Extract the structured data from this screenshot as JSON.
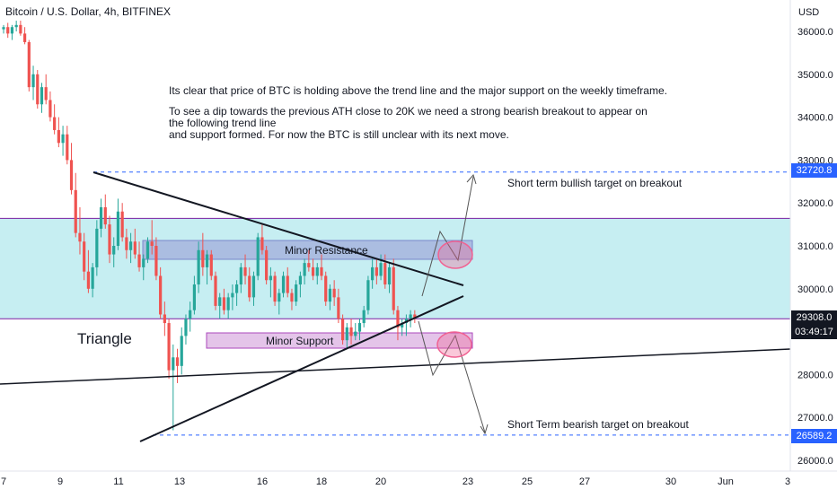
{
  "header": {
    "title": "Bitcoin / U.S. Dollar, 4h, BITFINEX"
  },
  "axis": {
    "currency": "USD"
  },
  "price_badges": {
    "bull_target": "32720.8",
    "current": "29308.0",
    "countdown": "03:49:17",
    "bear_target": "26589.2"
  },
  "annotations": {
    "note_line1": "Its clear that price of BTC is holding above the trend line and the major support on the weekly timeframe.",
    "note_line2": "To see a dip towards the previous ATH close to 20K we need a strong bearish breakout to appear on",
    "note_line3": "the following trend line",
    "note_line4": "and support formed. For now the BTC is still unclear with its next move.",
    "bull_label": "Short term bullish target on breakout",
    "bear_label": "Short Term bearish target on breakout",
    "minor_resistance": "Minor Resistance",
    "minor_support": "Minor Support",
    "triangle": "Triangle"
  },
  "colors": {
    "bull": "#26a69a",
    "bear": "#ef5350",
    "zone_fill": "#c6eef2",
    "zone_line": "#7b1fa2",
    "resistance_box": "#9fa8da",
    "support_box": "#e1bee7",
    "target_line": "#2962ff",
    "ellipse": "#f06292"
  },
  "chart_data": {
    "type": "candlestick",
    "title": "Bitcoin / U.S. Dollar, 4h, BITFINEX",
    "ylabel": "USD",
    "ylim": [
      25850,
      36300
    ],
    "y_ticks": [
      "36000.0",
      "35000.0",
      "34000.0",
      "33000.0",
      "32000.0",
      "31000.0",
      "30000.0",
      "28000.0",
      "27000.0",
      "26000.0"
    ],
    "x_ticks": [
      "7",
      "9",
      "11",
      "13",
      "16",
      "18",
      "20",
      "23",
      "25",
      "27",
      "30",
      "Jun",
      "3"
    ],
    "levels": {
      "bullish_target": 32720.8,
      "current_price": 29308.0,
      "bearish_target": 26589.2,
      "zone_top": 31640,
      "zone_bottom": 29300
    },
    "candles": [
      [
        36050,
        36150,
        35950,
        36100
      ],
      [
        36100,
        36200,
        35850,
        35950
      ],
      [
        35950,
        36150,
        35800,
        36100
      ],
      [
        36100,
        36250,
        36000,
        36150
      ],
      [
        36150,
        36250,
        35900,
        35950
      ],
      [
        35950,
        36100,
        35700,
        35750
      ],
      [
        35750,
        35800,
        34600,
        34700
      ],
      [
        34700,
        35200,
        34400,
        35000
      ],
      [
        35000,
        35100,
        34200,
        34300
      ],
      [
        34300,
        34800,
        34100,
        34700
      ],
      [
        34700,
        35000,
        34300,
        34400
      ],
      [
        34400,
        34600,
        33900,
        34000
      ],
      [
        34000,
        34300,
        33600,
        33700
      ],
      [
        33700,
        34000,
        33300,
        33400
      ],
      [
        33400,
        33800,
        33100,
        33600
      ],
      [
        33600,
        33800,
        32900,
        33000
      ],
      [
        33000,
        33400,
        32200,
        32300
      ],
      [
        32300,
        32700,
        31200,
        31300
      ],
      [
        31300,
        31900,
        30800,
        31100
      ],
      [
        31100,
        31300,
        30200,
        30400
      ],
      [
        30400,
        30900,
        29900,
        30000
      ],
      [
        30000,
        30600,
        29800,
        30500
      ],
      [
        30500,
        31600,
        30300,
        31400
      ],
      [
        31400,
        32100,
        31200,
        31900
      ],
      [
        31900,
        32200,
        31400,
        31500
      ],
      [
        31500,
        31700,
        30600,
        30800
      ],
      [
        30800,
        31200,
        30500,
        31000
      ],
      [
        31000,
        32100,
        30900,
        31800
      ],
      [
        31800,
        32000,
        31100,
        31200
      ],
      [
        31200,
        31400,
        30700,
        30900
      ],
      [
        30900,
        31300,
        30600,
        31100
      ],
      [
        31100,
        31400,
        30700,
        30800
      ],
      [
        30800,
        31100,
        30400,
        30500
      ],
      [
        30500,
        30800,
        30200,
        30700
      ],
      [
        30700,
        31200,
        30600,
        31100
      ],
      [
        31100,
        31600,
        30800,
        31000
      ],
      [
        31000,
        31200,
        30200,
        30300
      ],
      [
        30300,
        30500,
        29300,
        29400
      ],
      [
        29400,
        29700,
        28900,
        29200
      ],
      [
        29200,
        29300,
        27900,
        28100
      ],
      [
        28100,
        28700,
        26700,
        28400
      ],
      [
        28400,
        28600,
        27800,
        28200
      ],
      [
        28200,
        29100,
        28000,
        28900
      ],
      [
        28900,
        29400,
        28700,
        29300
      ],
      [
        29300,
        29700,
        29000,
        29500
      ],
      [
        29500,
        30300,
        29400,
        30100
      ],
      [
        30100,
        31100,
        29900,
        30900
      ],
      [
        30900,
        31300,
        30300,
        30500
      ],
      [
        30500,
        30900,
        30100,
        30800
      ],
      [
        30800,
        30900,
        30200,
        30300
      ],
      [
        30300,
        30400,
        29500,
        29600
      ],
      [
        29600,
        29900,
        29300,
        29800
      ],
      [
        29800,
        30000,
        29400,
        29500
      ],
      [
        29500,
        29900,
        29300,
        29800
      ],
      [
        29800,
        30100,
        29500,
        29900
      ],
      [
        29900,
        30200,
        29600,
        30100
      ],
      [
        30100,
        30600,
        29900,
        30500
      ],
      [
        30500,
        30800,
        30100,
        30300
      ],
      [
        30300,
        30500,
        29700,
        29800
      ],
      [
        29800,
        30400,
        29600,
        30300
      ],
      [
        30300,
        31300,
        30200,
        31200
      ],
      [
        31200,
        31500,
        30800,
        30900
      ],
      [
        30900,
        31000,
        30100,
        30200
      ],
      [
        30200,
        30500,
        29800,
        30300
      ],
      [
        30300,
        30400,
        29600,
        29700
      ],
      [
        29700,
        30000,
        29400,
        29900
      ],
      [
        29900,
        30400,
        29800,
        30300
      ],
      [
        30300,
        30500,
        29800,
        29900
      ],
      [
        29900,
        30000,
        29500,
        29700
      ],
      [
        29700,
        30200,
        29600,
        30100
      ],
      [
        30100,
        30400,
        29800,
        30300
      ],
      [
        30300,
        30700,
        30100,
        30600
      ],
      [
        30600,
        30900,
        30400,
        30500
      ],
      [
        30500,
        30700,
        30200,
        30300
      ],
      [
        30300,
        30600,
        30100,
        30500
      ],
      [
        30500,
        30800,
        30200,
        30300
      ],
      [
        30300,
        30400,
        29600,
        29700
      ],
      [
        29700,
        30100,
        29500,
        30000
      ],
      [
        30000,
        30200,
        29600,
        29800
      ],
      [
        29800,
        30000,
        29200,
        29300
      ],
      [
        29300,
        29400,
        28700,
        28800
      ],
      [
        28800,
        29200,
        28600,
        29100
      ],
      [
        29100,
        29300,
        28700,
        28900
      ],
      [
        28900,
        29200,
        28800,
        29000
      ],
      [
        29000,
        29300,
        28800,
        29200
      ],
      [
        29200,
        29600,
        29100,
        29500
      ],
      [
        29500,
        30300,
        29400,
        30200
      ],
      [
        30200,
        30700,
        30000,
        30500
      ],
      [
        30500,
        30700,
        30100,
        30300
      ],
      [
        30300,
        30800,
        30200,
        30600
      ],
      [
        30600,
        30800,
        30000,
        30100
      ],
      [
        30100,
        30600,
        29900,
        30500
      ],
      [
        30500,
        30700,
        29400,
        29500
      ],
      [
        29500,
        29600,
        28800,
        29100
      ],
      [
        29100,
        29300,
        28900,
        29200
      ],
      [
        29200,
        29400,
        28900,
        29300
      ],
      [
        29300,
        29500,
        29100,
        29400
      ],
      [
        29400,
        29500,
        29200,
        29300
      ]
    ]
  }
}
